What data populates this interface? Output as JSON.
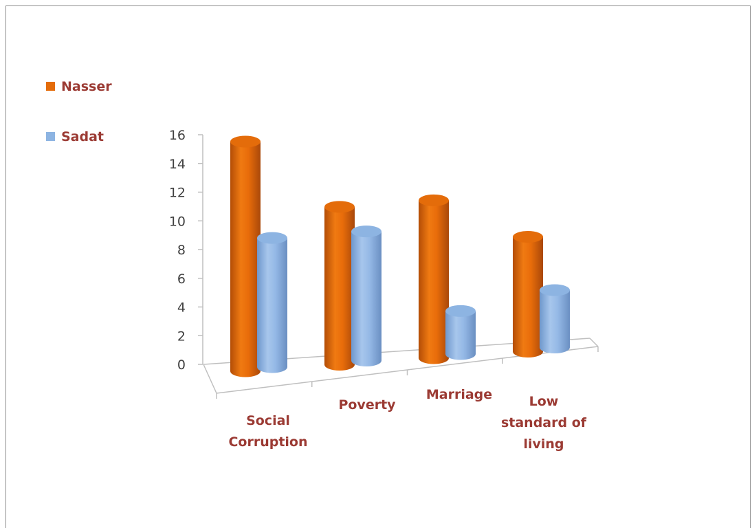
{
  "chart_data": {
    "type": "bar",
    "style": "3d-cylinder",
    "categories": [
      [
        "Social",
        "Corruption"
      ],
      [
        "Poverty"
      ],
      [
        "Marriage"
      ],
      [
        "Low",
        "standard of",
        "living"
      ]
    ],
    "series": [
      {
        "name": "Nasser",
        "values": [
          16,
          11,
          11,
          8
        ],
        "color": "#e46c0a"
      },
      {
        "name": "Sadat",
        "values": [
          9,
          9,
          3,
          4
        ],
        "color": "#8db4e2"
      }
    ],
    "yticks": [
      "0",
      "2",
      "4",
      "6",
      "8",
      "10",
      "12",
      "14",
      "16"
    ],
    "ylim": [
      0,
      16
    ],
    "legend_position": "left",
    "grid": false
  }
}
